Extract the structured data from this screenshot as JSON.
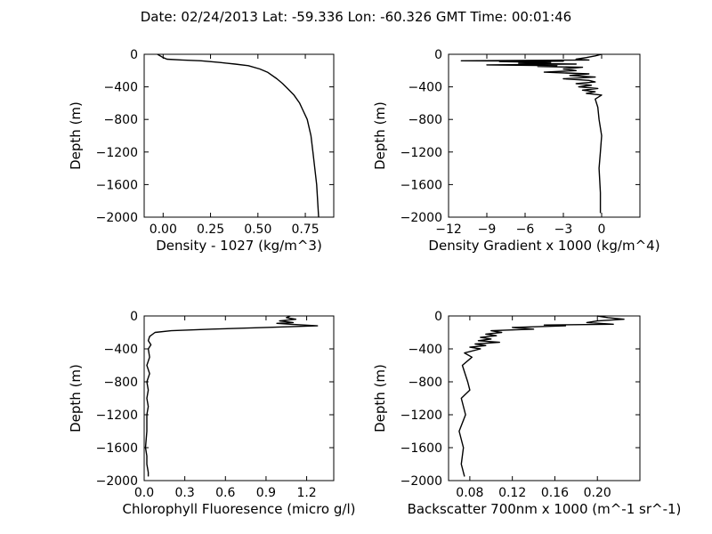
{
  "figure": {
    "title": "Date: 02/24/2013  Lat:  -59.336 Lon:  -60.326  GMT Time: 00:01:46",
    "line_color": "#000000",
    "background": "#ffffff"
  },
  "chart_data": [
    {
      "type": "line",
      "id": "density",
      "xlabel": "Density - 1027 (kg/m^3)",
      "ylabel": "Depth (m)",
      "xlim": [
        -0.1,
        0.9
      ],
      "ylim": [
        -2000,
        0
      ],
      "xticks": [
        0.0,
        0.25,
        0.5,
        0.75
      ],
      "xtick_labels": [
        "0.00",
        "0.25",
        "0.50",
        "0.75"
      ],
      "yticks": [
        0,
        -400,
        -800,
        -1200,
        -1600,
        -2000
      ],
      "ytick_labels": [
        "0",
        "−400",
        "−800",
        "−1200",
        "−1600",
        "−2000"
      ],
      "series": [
        {
          "x": [
            -0.03,
            0.0,
            0.02,
            0.1,
            0.2,
            0.3,
            0.38,
            0.45,
            0.51,
            0.55,
            0.6,
            0.63,
            0.66,
            0.69,
            0.72,
            0.74,
            0.76,
            0.77,
            0.78,
            0.79,
            0.8,
            0.81,
            0.82
          ],
          "y": [
            0,
            -40,
            -60,
            -70,
            -80,
            -100,
            -120,
            -140,
            -180,
            -220,
            -300,
            -360,
            -430,
            -500,
            -600,
            -700,
            -800,
            -900,
            -1000,
            -1200,
            -1400,
            -1600,
            -2000
          ]
        }
      ]
    },
    {
      "type": "line",
      "id": "density-gradient",
      "xlabel": "Density Gradient x 1000 (kg/m^4)",
      "ylabel": "Depth (m)",
      "xlim": [
        -12,
        3
      ],
      "ylim": [
        -2000,
        0
      ],
      "xticks": [
        -12,
        -9,
        -6,
        -3,
        0
      ],
      "xtick_labels": [
        "−12",
        "−9",
        "−6",
        "−3",
        "0"
      ],
      "yticks": [
        0,
        -400,
        -800,
        -1200,
        -1600,
        -2000
      ],
      "ytick_labels": [
        "0",
        "−400",
        "−800",
        "−1200",
        "−1600",
        "−2000"
      ],
      "series": [
        {
          "x": [
            0,
            -0.5,
            -1.2,
            -2.0,
            -1.0,
            -11.0,
            -3.0,
            -8.0,
            -4.0,
            -6.5,
            -2.0,
            -9.0,
            -3.5,
            -5.0,
            -1.5,
            -3.0,
            -2.0,
            -4.5,
            -1.0,
            -2.5,
            -0.5,
            -3.0,
            -1.0,
            -0.5,
            -2.0,
            -0.8,
            -1.8,
            -0.3,
            -1.5,
            -0.5,
            -1.2,
            0.0,
            -0.5,
            -0.3,
            -0.2,
            0.0,
            -0.1,
            -0.2,
            -0.1,
            -0.1
          ],
          "y": [
            0,
            -20,
            -40,
            -60,
            -70,
            -80,
            -85,
            -90,
            -100,
            -110,
            -120,
            -130,
            -140,
            -150,
            -160,
            -180,
            -200,
            -220,
            -240,
            -260,
            -280,
            -300,
            -320,
            -340,
            -360,
            -380,
            -400,
            -420,
            -440,
            -460,
            -480,
            -500,
            -550,
            -650,
            -800,
            -1000,
            -1200,
            -1400,
            -1700,
            -1950
          ]
        }
      ]
    },
    {
      "type": "line",
      "id": "chlorophyll",
      "xlabel": "Chlorophyll Fluoresence (micro g/l)",
      "ylabel": "Depth (m)",
      "xlim": [
        0.0,
        1.4
      ],
      "ylim": [
        -2000,
        0
      ],
      "xticks": [
        0.0,
        0.3,
        0.6,
        0.9,
        1.2
      ],
      "xtick_labels": [
        "0.0",
        "0.3",
        "0.6",
        "0.9",
        "1.2"
      ],
      "yticks": [
        0,
        -400,
        -800,
        -1200,
        -1600,
        -2000
      ],
      "ytick_labels": [
        "0",
        "−400",
        "−800",
        "−1200",
        "−1600",
        "−2000"
      ],
      "series": [
        {
          "x": [
            1.08,
            1.05,
            1.12,
            1.0,
            1.1,
            0.98,
            1.08,
            1.28,
            0.9,
            0.5,
            0.2,
            0.08,
            0.04,
            0.03,
            0.05,
            0.03,
            0.04,
            0.02,
            0.04,
            0.02,
            0.03,
            0.02,
            0.03,
            0.02,
            0.02,
            0.01,
            0.02,
            0.02,
            0.03,
            0.03
          ],
          "y": [
            0,
            -20,
            -40,
            -60,
            -80,
            -90,
            -100,
            -120,
            -140,
            -160,
            -180,
            -200,
            -250,
            -300,
            -350,
            -400,
            -500,
            -600,
            -700,
            -800,
            -900,
            -1000,
            -1100,
            -1200,
            -1400,
            -1600,
            -1700,
            -1800,
            -1900,
            -1950
          ]
        }
      ]
    },
    {
      "type": "line",
      "id": "backscatter",
      "xlabel": "Backscatter 700nm x 1000 (m^-1 sr^-1)",
      "ylabel": "Depth (m)",
      "xlim": [
        0.06,
        0.24
      ],
      "ylim": [
        -2000,
        0
      ],
      "xticks": [
        0.08,
        0.12,
        0.16,
        0.2
      ],
      "xtick_labels": [
        "0.08",
        "0.12",
        "0.16",
        "0.20"
      ],
      "yticks": [
        0,
        -400,
        -800,
        -1200,
        -1600,
        -2000
      ],
      "ytick_labels": [
        "0",
        "−400",
        "−800",
        "−1200",
        "−1600",
        "−2000"
      ],
      "series": [
        {
          "x": [
            0.2,
            0.21,
            0.225,
            0.2,
            0.19,
            0.215,
            0.15,
            0.17,
            0.12,
            0.14,
            0.1,
            0.11,
            0.095,
            0.105,
            0.09,
            0.1,
            0.088,
            0.108,
            0.085,
            0.095,
            0.08,
            0.09,
            0.075,
            0.082,
            0.073,
            0.078,
            0.08,
            0.072,
            0.076,
            0.07,
            0.074,
            0.072,
            0.075
          ],
          "y": [
            0,
            -20,
            -40,
            -60,
            -80,
            -100,
            -110,
            -120,
            -140,
            -160,
            -180,
            -200,
            -220,
            -240,
            -260,
            -280,
            -300,
            -320,
            -340,
            -360,
            -380,
            -400,
            -450,
            -500,
            -600,
            -800,
            -900,
            -1000,
            -1200,
            -1400,
            -1600,
            -1800,
            -1950
          ]
        }
      ]
    }
  ]
}
